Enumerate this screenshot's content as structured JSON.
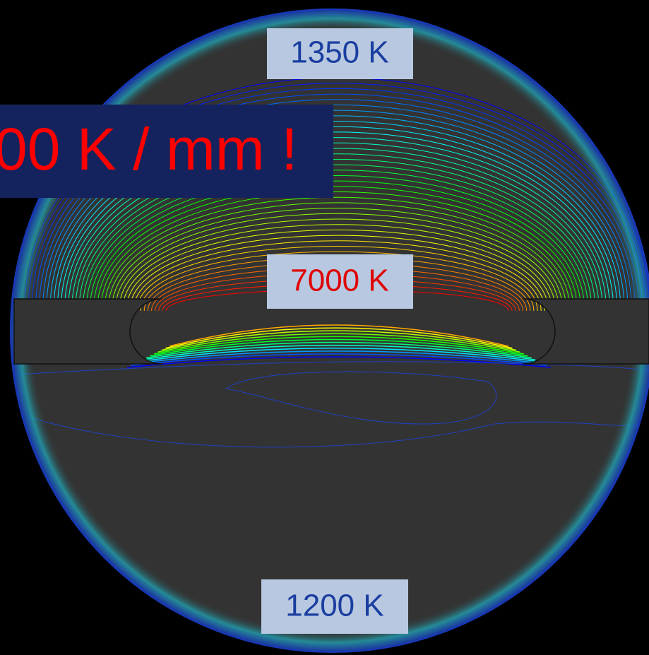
{
  "labels": {
    "top": "1350 K",
    "center": "7000 K",
    "bottom": "1200 K"
  },
  "banner": "00 K / mm !"
}
